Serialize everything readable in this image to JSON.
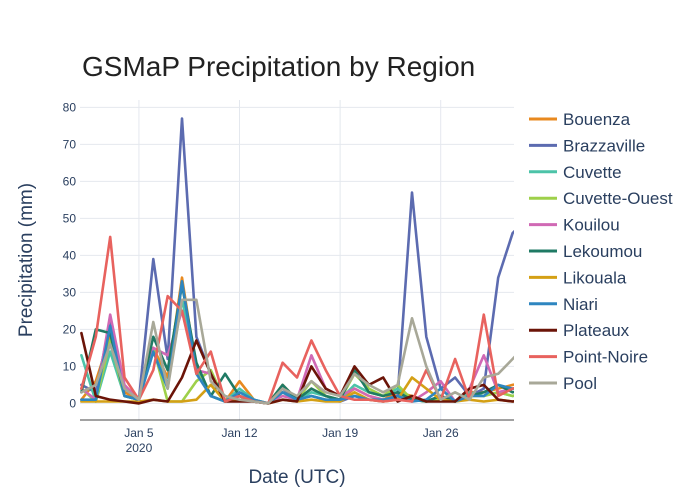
{
  "chart_data": {
    "type": "line",
    "title": "GSMaP Precipitation by Region",
    "xlabel": "Date (UTC)",
    "ylabel": "Precipitation (mm)",
    "x_start": "2020-01-01",
    "x": [
      "2020-01-01",
      "2020-01-02",
      "2020-01-03",
      "2020-01-04",
      "2020-01-05",
      "2020-01-06",
      "2020-01-07",
      "2020-01-08",
      "2020-01-09",
      "2020-01-10",
      "2020-01-11",
      "2020-01-12",
      "2020-01-13",
      "2020-01-14",
      "2020-01-15",
      "2020-01-16",
      "2020-01-17",
      "2020-01-18",
      "2020-01-19",
      "2020-01-20",
      "2020-01-21",
      "2020-01-22",
      "2020-01-23",
      "2020-01-24",
      "2020-01-25",
      "2020-01-26",
      "2020-01-27",
      "2020-01-28",
      "2020-01-29",
      "2020-01-30",
      "2020-01-31",
      "2020-02-01"
    ],
    "x_ticks": [
      {
        "day": 4,
        "label": "Jan 5",
        "sub": "2020"
      },
      {
        "day": 11,
        "label": "Jan 12",
        "sub": ""
      },
      {
        "day": 18,
        "label": "Jan 19",
        "sub": ""
      },
      {
        "day": 25,
        "label": "Jan 26",
        "sub": ""
      }
    ],
    "y_ticks": [
      0,
      10,
      20,
      30,
      40,
      50,
      60,
      70,
      80
    ],
    "ylim": [
      -4.5,
      82
    ],
    "xlim": [
      -0.1,
      30.1
    ],
    "grid": true,
    "legend_position": "right",
    "series": [
      {
        "name": "Bouenza",
        "color": "#e8891f",
        "values": [
          1,
          6,
          18,
          3,
          1,
          15,
          7,
          34,
          9,
          2,
          0.5,
          6,
          1,
          0,
          5,
          1,
          4,
          2,
          1,
          4,
          2,
          1,
          3,
          2,
          0.5,
          2,
          0.5,
          3,
          3,
          4,
          5,
          6
        ]
      },
      {
        "name": "Brazzaville",
        "color": "#5c6bb0",
        "values": [
          5,
          3,
          22,
          4,
          1,
          39,
          12,
          77,
          18,
          8,
          0.5,
          2,
          0.5,
          0,
          4,
          1,
          2,
          1,
          0.5,
          2,
          1,
          0.5,
          2,
          57,
          18,
          4,
          7,
          2,
          4,
          34,
          46,
          50
        ]
      },
      {
        "name": "Cuvette",
        "color": "#4cc3a8",
        "values": [
          13,
          0.5,
          14,
          2,
          1,
          14,
          5,
          28,
          10,
          2,
          0.5,
          4,
          1,
          0,
          3,
          1,
          3,
          2,
          1,
          5,
          3,
          2,
          4,
          1,
          0.5,
          2,
          0.5,
          3,
          2,
          3,
          2,
          3
        ]
      },
      {
        "name": "Cuvette-Ouest",
        "color": "#9ed04a",
        "values": [
          4,
          0.5,
          17,
          2,
          1,
          15,
          0.5,
          0.5,
          6,
          9,
          0.5,
          2,
          0.5,
          0,
          3,
          1,
          6,
          2,
          1,
          8,
          4,
          2,
          5,
          1,
          0.5,
          1,
          0.5,
          2,
          2,
          3,
          2,
          3
        ]
      },
      {
        "name": "Kouilou",
        "color": "#d069b4",
        "values": [
          4,
          1,
          24,
          5,
          1,
          15,
          13,
          25,
          9,
          8,
          0.5,
          2,
          0.5,
          0,
          2,
          1,
          13,
          4,
          2,
          4,
          2,
          1,
          2,
          0.5,
          3,
          6,
          0.5,
          4,
          13,
          3,
          4,
          5
        ]
      },
      {
        "name": "Lekoumou",
        "color": "#1f7a64",
        "values": [
          3,
          20,
          19,
          2,
          1,
          18,
          9,
          32,
          11,
          2,
          8,
          2,
          0.5,
          0,
          5,
          1,
          4,
          2,
          1,
          9,
          3,
          2,
          3,
          1,
          0.5,
          2,
          0.5,
          2,
          3,
          5,
          3,
          4
        ]
      },
      {
        "name": "Likouala",
        "color": "#d4a015",
        "values": [
          0.5,
          0.5,
          0.5,
          0.5,
          0.5,
          1,
          0.5,
          0.5,
          1,
          5,
          0.5,
          1,
          0.5,
          0,
          1,
          0.5,
          1,
          0.5,
          0.5,
          3,
          1,
          0.5,
          1,
          7,
          4,
          1,
          0.5,
          1,
          0.5,
          1,
          0.5,
          1
        ]
      },
      {
        "name": "Niari",
        "color": "#2e86c0",
        "values": [
          1,
          1,
          21,
          2,
          1,
          14,
          4,
          33,
          8,
          2,
          0.5,
          3,
          1,
          0,
          3,
          1,
          2,
          1,
          1,
          2,
          1,
          1,
          2,
          0.5,
          1,
          4,
          0.5,
          2,
          2,
          5,
          4,
          4
        ]
      },
      {
        "name": "Plateaux",
        "color": "#6b1408",
        "values": [
          19,
          2,
          1,
          0.5,
          0,
          1,
          0.5,
          7,
          17,
          8,
          0.5,
          0.5,
          0.5,
          0,
          1,
          0.5,
          10,
          4,
          2,
          10,
          5,
          7,
          0.5,
          2,
          0.5,
          0.5,
          0.5,
          4,
          5,
          1,
          0.5,
          1
        ]
      },
      {
        "name": "Point-Noire",
        "color": "#e8625e",
        "values": [
          4,
          18,
          45,
          7,
          1,
          9,
          29,
          25,
          8,
          14,
          0.5,
          2,
          0.5,
          0,
          11,
          7,
          17,
          9,
          2,
          1,
          1,
          0.5,
          1,
          0.5,
          9,
          1,
          12,
          1,
          24,
          2,
          4,
          5
        ]
      },
      {
        "name": "Pool",
        "color": "#a8a898",
        "values": [
          3,
          5,
          16,
          4,
          1,
          22,
          4,
          28,
          28,
          6,
          2,
          1,
          0.5,
          0,
          4,
          2,
          6,
          3,
          2,
          8,
          5,
          3,
          5,
          23,
          10,
          1,
          3,
          1,
          7,
          8,
          12,
          16
        ]
      }
    ]
  }
}
